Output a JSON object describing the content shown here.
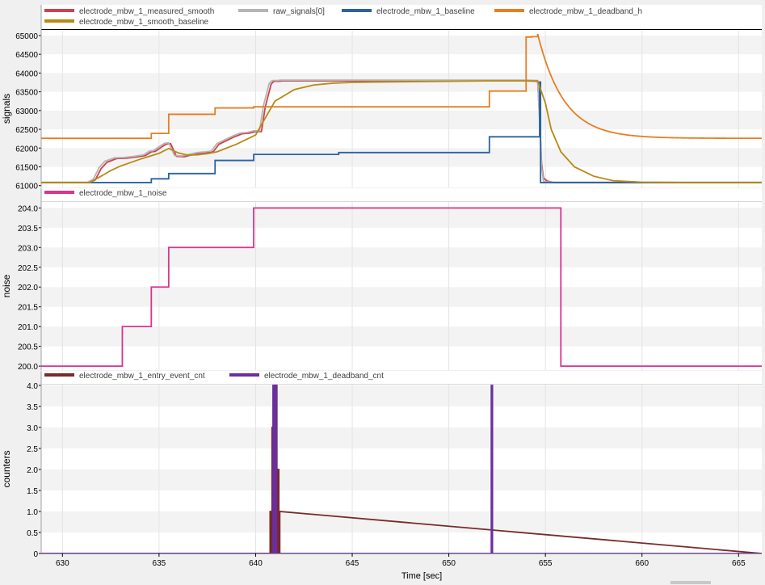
{
  "chart_data": [
    {
      "type": "line",
      "ylabel": "signals",
      "ylim": [
        60950,
        65150
      ],
      "yticks": [
        61000,
        61500,
        62000,
        62500,
        63000,
        63500,
        64000,
        64500,
        65000
      ],
      "xlim": [
        628.9,
        666.2
      ],
      "grid": true,
      "legend_position": "top",
      "series": [
        {
          "name": "electrode_mbw_1_measured_smooth",
          "color": "#d0404e",
          "x": [
            628.9,
            631.4,
            631.7,
            632.0,
            632.3,
            632.8,
            633.3,
            633.8,
            634.3,
            634.6,
            634.8,
            635.2,
            635.4,
            635.6,
            635.9,
            636.3,
            636.7,
            637.1,
            637.5,
            637.8,
            638.1,
            638.5,
            638.9,
            639.3,
            639.7,
            640.0,
            640.3,
            640.5,
            640.7,
            640.8,
            640.9,
            641.0,
            641.2,
            641.4,
            642.0,
            644.0,
            646.0,
            648.0,
            650.0,
            652.0,
            654.0,
            654.6,
            654.7,
            654.8,
            654.9,
            655.1,
            655.5,
            656.0,
            658.0,
            660.0,
            666.2
          ],
          "y": [
            61080,
            61080,
            61150,
            61450,
            61620,
            61720,
            61730,
            61760,
            61800,
            61900,
            61910,
            62050,
            62110,
            62120,
            61780,
            61770,
            61820,
            61860,
            61880,
            61900,
            62100,
            62200,
            62300,
            62380,
            62400,
            62440,
            62440,
            63100,
            63500,
            63700,
            63760,
            63780,
            63780,
            63790,
            63790,
            63790,
            63790,
            63790,
            63790,
            63790,
            63790,
            63780,
            62800,
            61600,
            61200,
            61120,
            61080,
            61080,
            61080,
            61080,
            61080
          ]
        },
        {
          "name": "raw_signals[0]",
          "color": "#b4b4b4",
          "x": [
            628.9,
            631.3,
            631.6,
            631.9,
            632.2,
            632.7,
            633.2,
            633.7,
            634.2,
            634.5,
            634.7,
            635.1,
            635.3,
            635.5,
            635.8,
            636.2,
            636.6,
            637.0,
            637.4,
            637.7,
            638.0,
            638.4,
            638.8,
            639.2,
            639.6,
            639.9,
            640.2,
            640.4,
            640.6,
            640.7,
            640.8,
            640.9,
            641.1,
            641.3,
            642.0,
            644.0,
            646.0,
            648.0,
            650.0,
            652.0,
            654.0,
            654.6,
            654.7,
            654.8,
            654.9,
            655.0,
            655.5,
            656.0,
            658.0,
            660.0,
            666.2
          ],
          "y": [
            61090,
            61090,
            61170,
            61480,
            61650,
            61740,
            61750,
            61780,
            61820,
            61920,
            61930,
            62070,
            62130,
            62140,
            61800,
            61790,
            61840,
            61880,
            61900,
            61920,
            62120,
            62220,
            62320,
            62400,
            62420,
            62460,
            62460,
            63120,
            63520,
            63720,
            63780,
            63800,
            63800,
            63810,
            63810,
            63810,
            63810,
            63810,
            63810,
            63810,
            63810,
            63800,
            62700,
            61500,
            61120,
            61100,
            61090,
            61090,
            61090,
            61090,
            61090
          ]
        },
        {
          "name": "electrode_mbw_1_baseline",
          "color": "#2a62a4",
          "step": true,
          "x": [
            628.9,
            633.1,
            634.6,
            635.5,
            637.9,
            639.9,
            644.3,
            652.1,
            654.7,
            654.75,
            666.2
          ],
          "y": [
            61080,
            61080,
            61180,
            61320,
            61670,
            61830,
            61880,
            62300,
            63760,
            61080,
            61080
          ]
        },
        {
          "name": "electrode_mbw_1_deadband_h",
          "color": "#e67e22",
          "step": true,
          "x": [
            628.9,
            633.1,
            634.6,
            635.5,
            637.9,
            639.9,
            644.3,
            652.1,
            654.0,
            654.3,
            654.6
          ],
          "y": [
            62260,
            62260,
            62390,
            62900,
            63070,
            63100,
            63100,
            63520,
            64960,
            64970,
            65040
          ],
          "decay": {
            "from_x": 654.6,
            "from_y": 65040,
            "to_y": 62260,
            "until_x": 666.2
          }
        },
        {
          "name": "electrode_mbw_1_smooth_baseline",
          "color": "#b88a14",
          "x": [
            628.9,
            631.4,
            632.0,
            632.5,
            633.0,
            634.0,
            635.0,
            635.5,
            636.0,
            636.5,
            637.0,
            637.5,
            638.0,
            639.0,
            640.0,
            640.5,
            641.0,
            642.0,
            643.0,
            644.0,
            645.0,
            646.0,
            648.0,
            650.0,
            652.0,
            654.0,
            654.6,
            655.0,
            655.3,
            655.8,
            656.5,
            657.5,
            658.5,
            660.0,
            662.0,
            666.2
          ],
          "y": [
            61080,
            61080,
            61250,
            61400,
            61520,
            61700,
            61860,
            61990,
            61870,
            61810,
            61820,
            61850,
            61900,
            62100,
            62350,
            62800,
            63250,
            63560,
            63680,
            63730,
            63750,
            63760,
            63770,
            63780,
            63790,
            63790,
            63790,
            63200,
            62500,
            61900,
            61500,
            61250,
            61130,
            61090,
            61080,
            61080
          ]
        }
      ]
    },
    {
      "type": "line",
      "ylabel": "noise",
      "ylim": [
        199.9,
        204.15
      ],
      "yticks": [
        200.0,
        200.5,
        201.0,
        201.5,
        202.0,
        202.5,
        203.0,
        203.5,
        204.0
      ],
      "xlim": [
        628.9,
        666.2
      ],
      "grid": true,
      "legend_position": "top",
      "series": [
        {
          "name": "electrode_mbw_1_noise",
          "color": "#d8358e",
          "step": true,
          "x": [
            628.9,
            633.1,
            634.6,
            635.5,
            639.9,
            655.8,
            666.2
          ],
          "y": [
            200,
            201,
            202,
            203,
            204,
            200,
            200
          ]
        }
      ]
    },
    {
      "type": "line",
      "ylabel": "counters",
      "xlabel": "Time [sec]",
      "ylim": [
        0,
        4.02
      ],
      "yticks": [
        0,
        0.5,
        1.0,
        1.5,
        2.0,
        2.5,
        3.0,
        3.5,
        4.0
      ],
      "xlim": [
        628.9,
        666.2
      ],
      "xticks": [
        630,
        635,
        640,
        645,
        650,
        655,
        660,
        665
      ],
      "grid": true,
      "legend_position": "top",
      "series": [
        {
          "name": "electrode_mbw_1_entry_event_cnt",
          "color": "#7a2a2a",
          "x": [
            628.9,
            640.75,
            640.75,
            640.8,
            640.8,
            640.85,
            640.85,
            640.9,
            640.9,
            640.95,
            640.95,
            641.0,
            641.0,
            641.05,
            641.05,
            641.1,
            641.1,
            641.15,
            641.15,
            641.2,
            641.2,
            641.25,
            641.25,
            666.2
          ],
          "y": [
            0,
            0,
            1,
            1,
            0,
            0,
            3,
            3,
            0,
            0,
            4,
            4,
            0,
            0,
            4,
            4,
            0,
            0,
            2,
            2,
            0,
            0,
            1,
            0
          ]
        },
        {
          "name": "electrode_mbw_1_deadband_cnt",
          "color": "#6a2ea0",
          "x": [
            628.9,
            640.9,
            640.9,
            640.95,
            640.95,
            641.02,
            641.02,
            641.08,
            641.08,
            652.2,
            652.2,
            652.26,
            652.26,
            666.2
          ],
          "y": [
            0,
            0,
            4,
            4,
            0,
            0,
            4,
            4,
            0,
            0,
            4,
            4,
            0,
            0
          ]
        }
      ]
    }
  ]
}
